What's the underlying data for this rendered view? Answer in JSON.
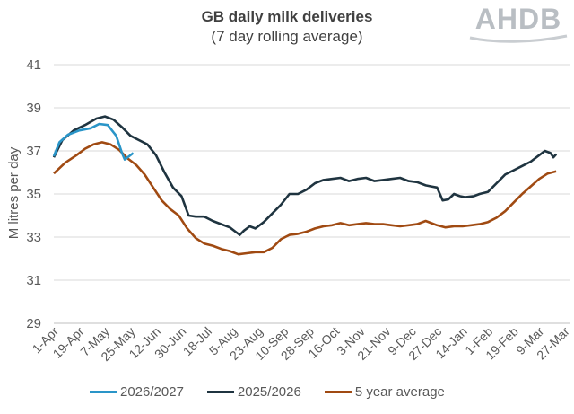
{
  "chart_data": {
    "type": "line",
    "title": "GB daily milk deliveries",
    "subtitle": "(7 day rolling average)",
    "ylabel": "M litres per day",
    "ylim": [
      29,
      41
    ],
    "yticks": [
      29,
      31,
      33,
      35,
      37,
      39,
      41
    ],
    "xlim": [
      0,
      364
    ],
    "x_tick_labels": [
      {
        "x": 0,
        "label": "1-Apr"
      },
      {
        "x": 18,
        "label": "19-Apr"
      },
      {
        "x": 36,
        "label": "7-May"
      },
      {
        "x": 54,
        "label": "25-May"
      },
      {
        "x": 72,
        "label": "12-Jun"
      },
      {
        "x": 90,
        "label": "30-Jun"
      },
      {
        "x": 108,
        "label": "18-Jul"
      },
      {
        "x": 126,
        "label": "5-Aug"
      },
      {
        "x": 144,
        "label": "23-Aug"
      },
      {
        "x": 162,
        "label": "10-Sep"
      },
      {
        "x": 180,
        "label": "28-Sep"
      },
      {
        "x": 198,
        "label": "16-Oct"
      },
      {
        "x": 216,
        "label": "3-Nov"
      },
      {
        "x": 234,
        "label": "21-Nov"
      },
      {
        "x": 252,
        "label": "9-Dec"
      },
      {
        "x": 270,
        "label": "27-Dec"
      },
      {
        "x": 288,
        "label": "14-Jan"
      },
      {
        "x": 306,
        "label": "1-Feb"
      },
      {
        "x": 324,
        "label": "19-Feb"
      },
      {
        "x": 342,
        "label": "9-Mar"
      },
      {
        "x": 360,
        "label": "27-Mar"
      }
    ],
    "grid": "horizontal",
    "legend": "bottom",
    "series": [
      {
        "name": "2026/2027",
        "color": "#2a95c8",
        "points": [
          [
            0,
            36.75
          ],
          [
            4,
            37.4
          ],
          [
            10,
            37.75
          ],
          [
            18,
            37.95
          ],
          [
            26,
            38.05
          ],
          [
            32,
            38.25
          ],
          [
            38,
            38.2
          ],
          [
            44,
            37.7
          ],
          [
            48,
            36.9
          ],
          [
            50,
            36.6
          ],
          [
            53,
            36.75
          ],
          [
            56,
            36.9
          ]
        ]
      },
      {
        "name": "2025/2026",
        "color": "#1f3440",
        "points": [
          [
            0,
            36.7
          ],
          [
            6,
            37.5
          ],
          [
            14,
            37.95
          ],
          [
            22,
            38.2
          ],
          [
            30,
            38.5
          ],
          [
            36,
            38.6
          ],
          [
            42,
            38.45
          ],
          [
            48,
            38.1
          ],
          [
            54,
            37.7
          ],
          [
            60,
            37.5
          ],
          [
            66,
            37.3
          ],
          [
            72,
            36.8
          ],
          [
            78,
            36.0
          ],
          [
            84,
            35.3
          ],
          [
            90,
            34.9
          ],
          [
            95,
            34.0
          ],
          [
            100,
            33.95
          ],
          [
            106,
            33.95
          ],
          [
            112,
            33.75
          ],
          [
            118,
            33.6
          ],
          [
            124,
            33.45
          ],
          [
            128,
            33.25
          ],
          [
            131,
            33.1
          ],
          [
            134,
            33.3
          ],
          [
            138,
            33.5
          ],
          [
            142,
            33.4
          ],
          [
            148,
            33.7
          ],
          [
            154,
            34.1
          ],
          [
            160,
            34.5
          ],
          [
            166,
            35.0
          ],
          [
            172,
            35.0
          ],
          [
            178,
            35.2
          ],
          [
            184,
            35.5
          ],
          [
            190,
            35.65
          ],
          [
            196,
            35.7
          ],
          [
            202,
            35.75
          ],
          [
            208,
            35.6
          ],
          [
            214,
            35.7
          ],
          [
            220,
            35.75
          ],
          [
            226,
            35.6
          ],
          [
            232,
            35.65
          ],
          [
            238,
            35.7
          ],
          [
            244,
            35.75
          ],
          [
            250,
            35.6
          ],
          [
            256,
            35.55
          ],
          [
            262,
            35.4
          ],
          [
            266,
            35.35
          ],
          [
            270,
            35.3
          ],
          [
            274,
            34.7
          ],
          [
            278,
            34.75
          ],
          [
            282,
            35.0
          ],
          [
            286,
            34.9
          ],
          [
            290,
            34.85
          ],
          [
            296,
            34.9
          ],
          [
            300,
            35.0
          ],
          [
            306,
            35.1
          ],
          [
            312,
            35.5
          ],
          [
            318,
            35.9
          ],
          [
            324,
            36.1
          ],
          [
            330,
            36.3
          ],
          [
            336,
            36.5
          ],
          [
            342,
            36.8
          ],
          [
            346,
            37.0
          ],
          [
            350,
            36.9
          ],
          [
            352,
            36.7
          ],
          [
            354,
            36.85
          ]
        ]
      },
      {
        "name": "5 year average",
        "color": "#a04a12",
        "points": [
          [
            0,
            35.95
          ],
          [
            8,
            36.45
          ],
          [
            16,
            36.8
          ],
          [
            22,
            37.1
          ],
          [
            28,
            37.3
          ],
          [
            34,
            37.4
          ],
          [
            40,
            37.3
          ],
          [
            46,
            37.05
          ],
          [
            52,
            36.65
          ],
          [
            58,
            36.35
          ],
          [
            64,
            35.9
          ],
          [
            70,
            35.3
          ],
          [
            76,
            34.7
          ],
          [
            82,
            34.3
          ],
          [
            88,
            34.0
          ],
          [
            94,
            33.4
          ],
          [
            100,
            32.95
          ],
          [
            106,
            32.7
          ],
          [
            112,
            32.6
          ],
          [
            118,
            32.45
          ],
          [
            124,
            32.35
          ],
          [
            130,
            32.2
          ],
          [
            136,
            32.25
          ],
          [
            142,
            32.3
          ],
          [
            148,
            32.3
          ],
          [
            154,
            32.5
          ],
          [
            160,
            32.9
          ],
          [
            166,
            33.1
          ],
          [
            172,
            33.15
          ],
          [
            178,
            33.25
          ],
          [
            184,
            33.4
          ],
          [
            190,
            33.5
          ],
          [
            196,
            33.55
          ],
          [
            202,
            33.65
          ],
          [
            208,
            33.55
          ],
          [
            214,
            33.6
          ],
          [
            220,
            33.65
          ],
          [
            226,
            33.6
          ],
          [
            232,
            33.6
          ],
          [
            238,
            33.55
          ],
          [
            244,
            33.5
          ],
          [
            250,
            33.55
          ],
          [
            256,
            33.6
          ],
          [
            262,
            33.75
          ],
          [
            266,
            33.65
          ],
          [
            270,
            33.55
          ],
          [
            276,
            33.45
          ],
          [
            282,
            33.5
          ],
          [
            288,
            33.5
          ],
          [
            294,
            33.55
          ],
          [
            300,
            33.6
          ],
          [
            306,
            33.7
          ],
          [
            312,
            33.9
          ],
          [
            318,
            34.2
          ],
          [
            324,
            34.6
          ],
          [
            330,
            35.0
          ],
          [
            336,
            35.35
          ],
          [
            342,
            35.7
          ],
          [
            348,
            35.95
          ],
          [
            354,
            36.05
          ]
        ]
      }
    ]
  },
  "logo": {
    "text": "AHDB",
    "color": "#b9bec3"
  }
}
